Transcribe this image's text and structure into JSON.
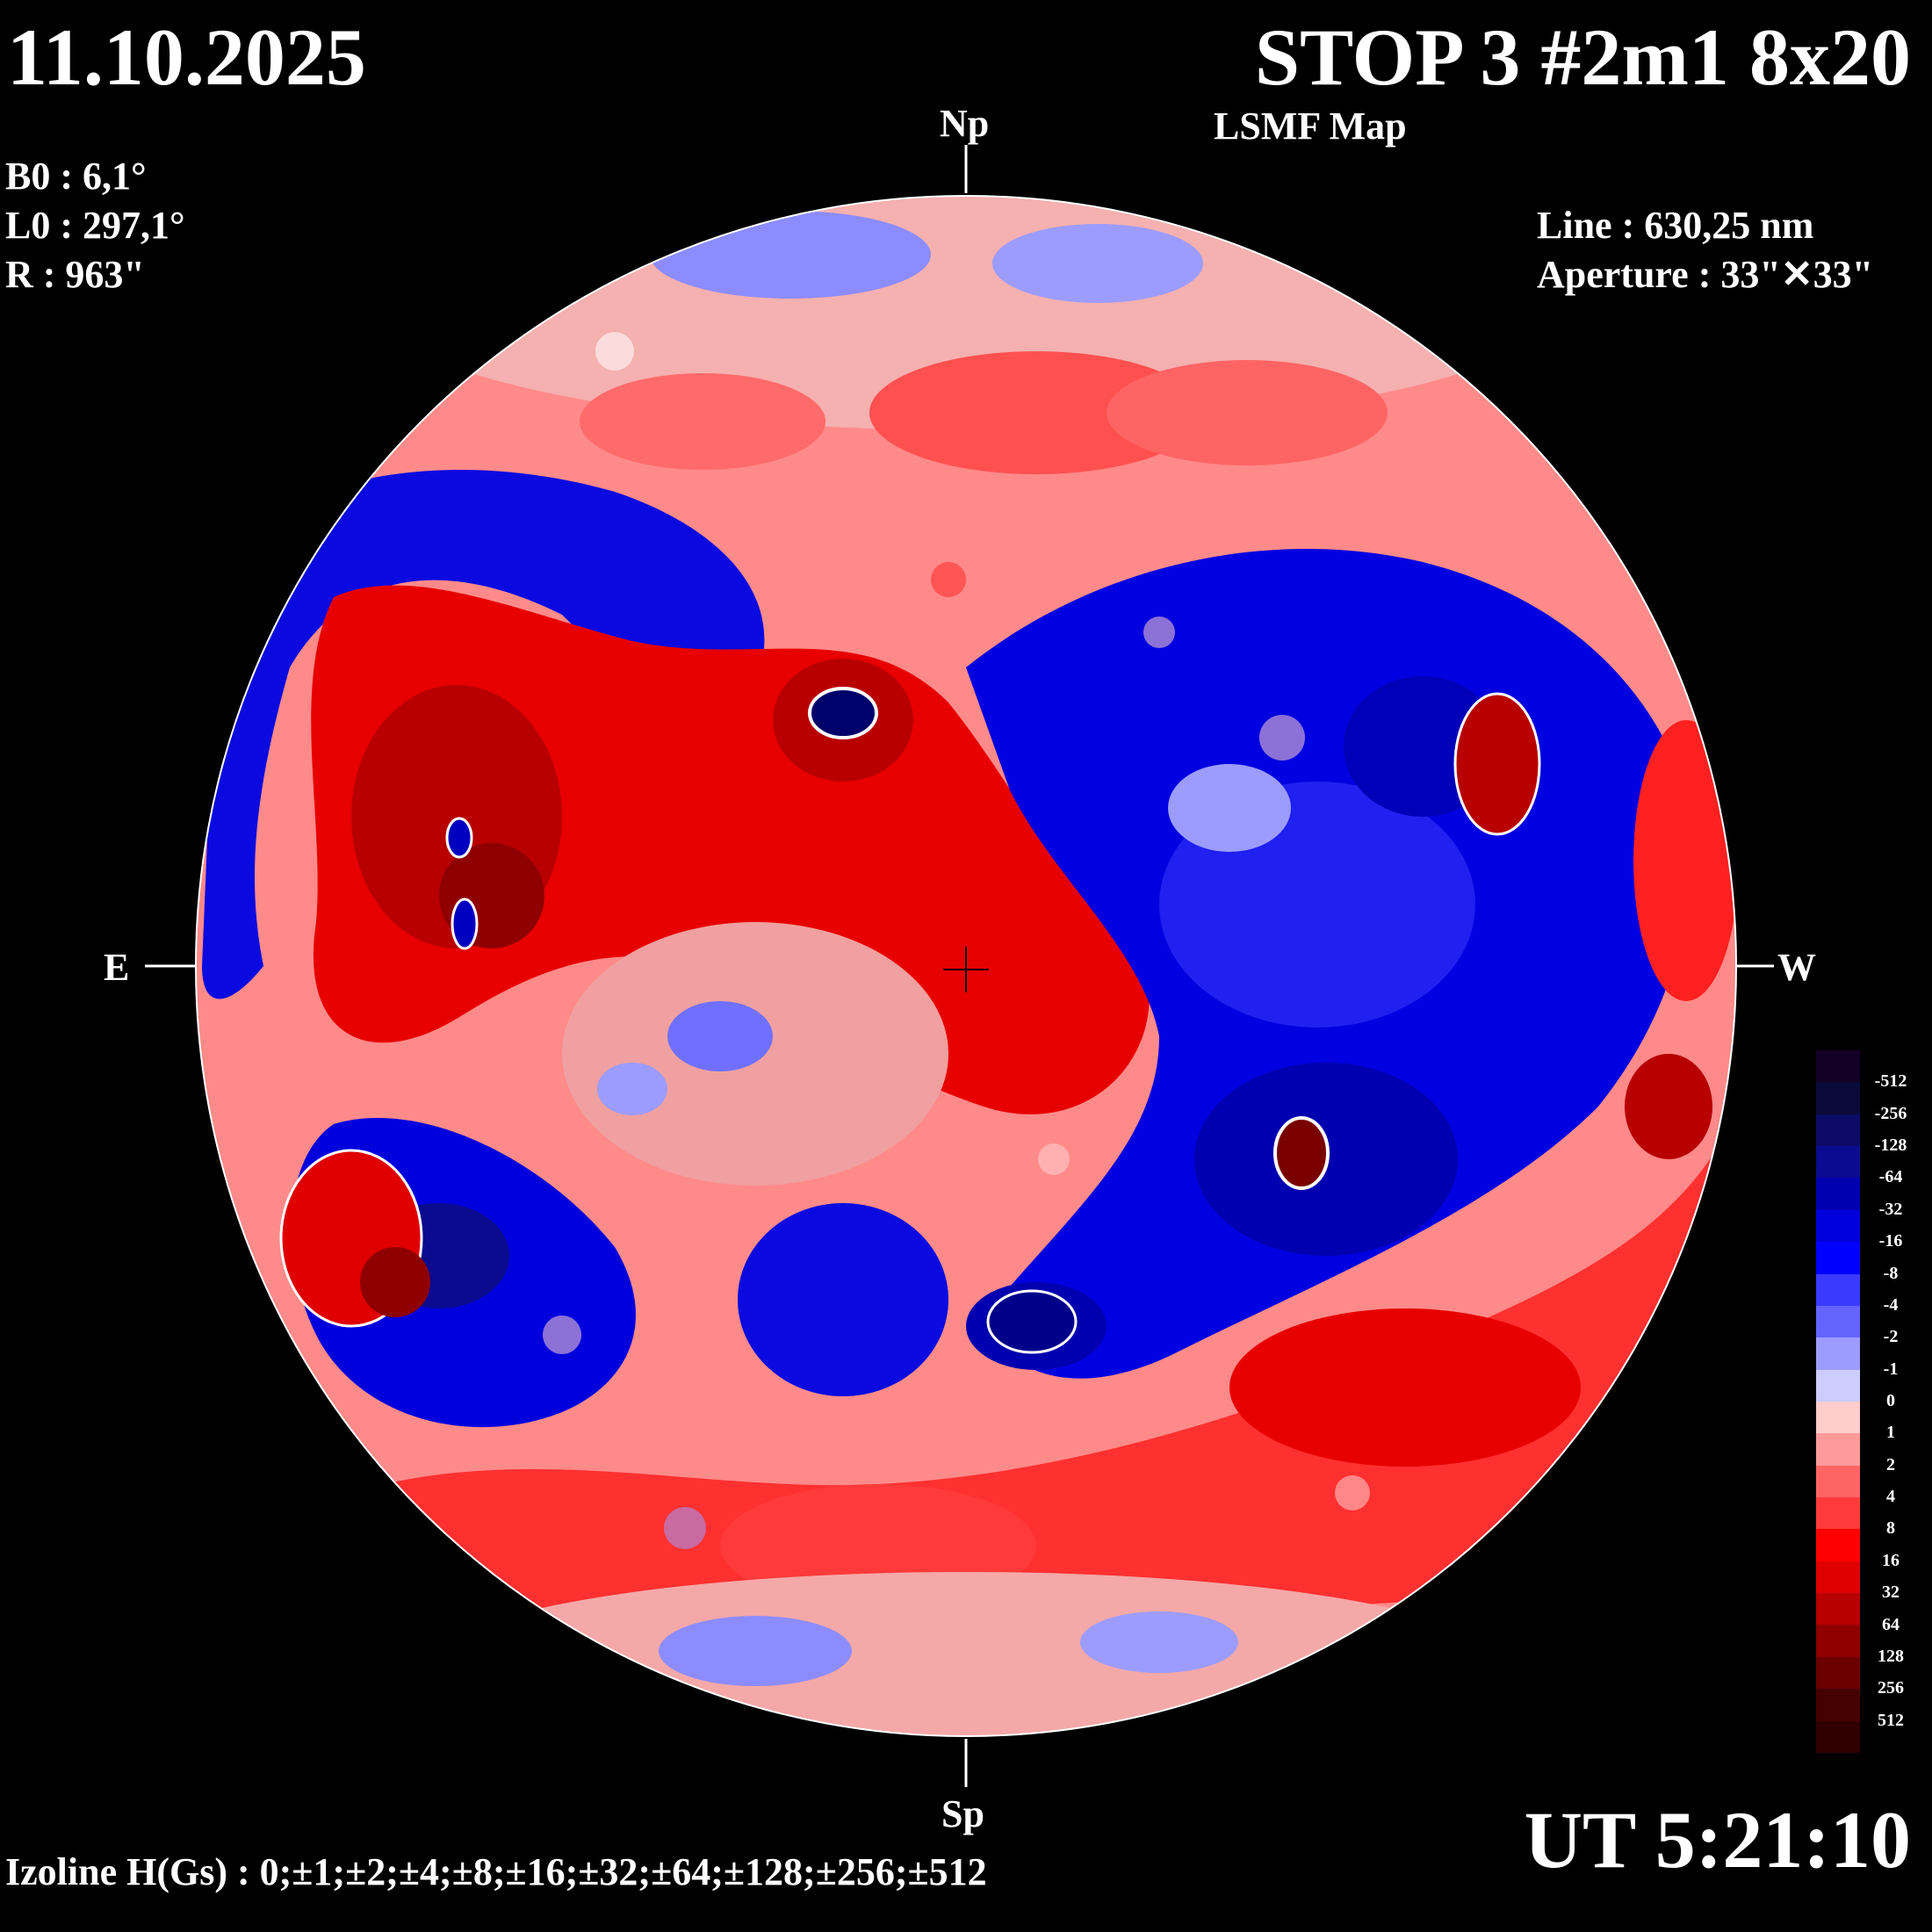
{
  "header": {
    "date": "11.10.2025",
    "title": "STOP 3 #2m1 8x20",
    "subtitle": "LSMF  Map"
  },
  "parameters": {
    "b0": "B0 : 6,1°",
    "l0": "L0 : 297,1°",
    "r": "R  : 963\""
  },
  "instrument": {
    "line": "Line :  630,25 nm",
    "aperture": "Aperture : 33\"✕33\""
  },
  "orientation": {
    "north": "Np",
    "south": "Sp",
    "east": "E",
    "west": "W"
  },
  "time": "UT 5:21:10",
  "izoline": "Izoline H(Gs) : 0;±1;±2;±4;±8;±16;±32;±64;±128;±256;±512",
  "colors": {
    "background": "#000000",
    "negative": "#1a1aff",
    "positive": "#ff1a1a",
    "zero_line": "#ffffff"
  },
  "scale": {
    "labels": [
      "-512",
      "-256",
      "-128",
      "-64",
      "-32",
      "-16",
      "-8",
      "-4",
      "-2",
      "-1",
      "0",
      "1",
      "2",
      "4",
      "8",
      "16",
      "32",
      "64",
      "128",
      "256",
      "512"
    ],
    "colors": [
      "#140026",
      "#0a0a3a",
      "#0c0c66",
      "#0b0b8f",
      "#0000b0",
      "#0000dd",
      "#0000ff",
      "#3a3aff",
      "#6464ff",
      "#9c9cff",
      "#ccccff",
      "#ffcccc",
      "#ff9a9a",
      "#ff6464",
      "#ff3a3a",
      "#ff0000",
      "#e00000",
      "#b80000",
      "#8f0000",
      "#6a0000",
      "#450000",
      "#300000"
    ]
  }
}
